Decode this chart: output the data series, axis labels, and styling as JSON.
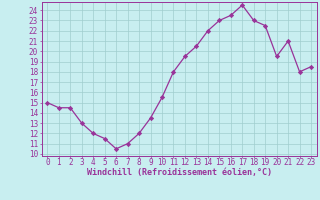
{
  "x": [
    0,
    1,
    2,
    3,
    4,
    5,
    6,
    7,
    8,
    9,
    10,
    11,
    12,
    13,
    14,
    15,
    16,
    17,
    18,
    19,
    20,
    21,
    22,
    23
  ],
  "y": [
    15,
    14.5,
    14.5,
    13,
    12,
    11.5,
    10.5,
    11,
    12,
    13.5,
    15.5,
    18,
    19.5,
    20.5,
    22,
    23,
    23.5,
    24.5,
    23,
    22.5,
    19.5,
    21,
    18,
    18.5
  ],
  "line_color": "#993399",
  "marker": "D",
  "markersize": 2.2,
  "linewidth": 0.9,
  "xlabel": "Windchill (Refroidissement éolien,°C)",
  "xlabel_color": "#993399",
  "xlabel_fontsize": 6.0,
  "xtick_labels": [
    "0",
    "1",
    "2",
    "3",
    "4",
    "5",
    "6",
    "7",
    "8",
    "9",
    "10",
    "11",
    "12",
    "13",
    "14",
    "15",
    "16",
    "17",
    "18",
    "19",
    "20",
    "21",
    "22",
    "23"
  ],
  "ytick_labels": [
    "10",
    "11",
    "12",
    "13",
    "14",
    "15",
    "16",
    "17",
    "18",
    "19",
    "20",
    "21",
    "22",
    "23",
    "24"
  ],
  "ytick_vals": [
    10,
    11,
    12,
    13,
    14,
    15,
    16,
    17,
    18,
    19,
    20,
    21,
    22,
    23,
    24
  ],
  "ylim": [
    9.8,
    24.8
  ],
  "xlim": [
    -0.5,
    23.5
  ],
  "background_color": "#c8eef0",
  "grid_color": "#a0cece",
  "tick_color": "#993399",
  "tick_fontsize": 5.5,
  "spine_color": "#993399"
}
